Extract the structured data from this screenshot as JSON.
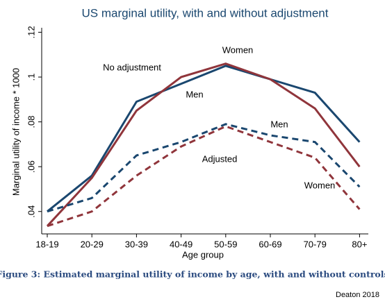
{
  "chart_data": {
    "type": "line",
    "title": "US marginal utility, with and without adjustment",
    "ylabel": "Marginal utility of income * 1000",
    "xlabel": "Age group",
    "categories": [
      "18-19",
      "20-29",
      "30-39",
      "40-49",
      "50-59",
      "60-69",
      "70-79",
      "80+"
    ],
    "series": [
      {
        "color": "#1a476f",
        "dash": false,
        "values": [
          0.04,
          0.056,
          0.089,
          0.097,
          0.105,
          0.099,
          0.093,
          0.071
        ]
      },
      {
        "color": "#90353b",
        "dash": false,
        "values": [
          0.0335,
          0.055,
          0.085,
          0.1,
          0.106,
          0.099,
          0.086,
          0.06
        ]
      },
      {
        "color": "#1a476f",
        "dash": true,
        "values": [
          0.04,
          0.046,
          0.065,
          0.071,
          0.079,
          0.074,
          0.071,
          0.051
        ]
      },
      {
        "color": "#90353b",
        "dash": true,
        "values": [
          0.0335,
          0.04,
          0.056,
          0.069,
          0.078,
          0.071,
          0.064,
          0.041
        ]
      }
    ],
    "ylim": [
      0.03,
      0.122
    ],
    "yticks": [
      {
        "value": 0.04,
        "label": ".04"
      },
      {
        "value": 0.06,
        "label": ".06"
      },
      {
        "value": 0.08,
        "label": ".08"
      },
      {
        "value": 0.1,
        "label": ".1"
      },
      {
        "value": 0.12,
        "label": ".12"
      }
    ],
    "grid": false,
    "annotations": [
      "No adjustment",
      "Women",
      "Men",
      "Men",
      "Adjusted",
      "Women"
    ]
  },
  "caption": "Figure 3: Estimated marginal utility of income by age, with and without controls",
  "source": "Deaton 2018"
}
